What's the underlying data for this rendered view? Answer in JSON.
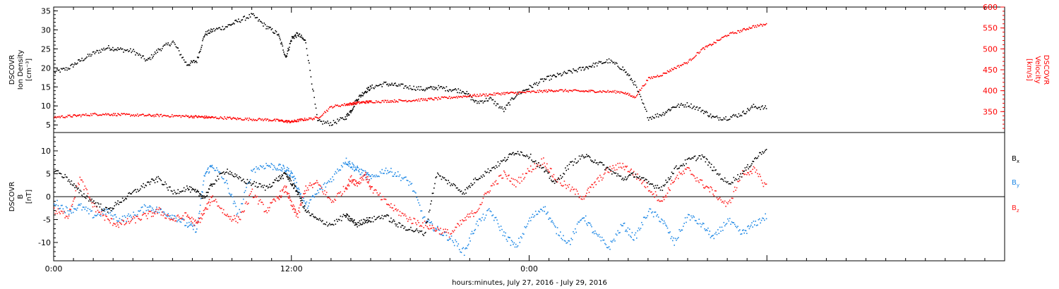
{
  "chart_data": [
    {
      "type": "scatter",
      "ylabel_left": [
        "DSCOVR",
        "Ion Density",
        "[cm⁻³]"
      ],
      "ylabel_right": [
        "DSCOVR",
        "Velocity",
        "[km/s]"
      ],
      "ylim_left": [
        3,
        36
      ],
      "ylim_right": [
        300,
        600
      ],
      "yticks_left": [
        "5",
        "10",
        "15",
        "20",
        "25",
        "30",
        "35"
      ],
      "yticks_right": [
        "350",
        "400",
        "450",
        "500",
        "550",
        "600"
      ],
      "colors": {
        "density": "#000000",
        "velocity": "#ff0000"
      },
      "series": [
        {
          "axis": "left",
          "color": "#000000",
          "x": [
            0.0,
            0.7,
            1.3,
            2.0,
            2.7,
            3.3,
            4.0,
            4.7,
            5.3,
            6.0,
            6.7,
            7.2,
            7.6,
            8.0,
            8.7,
            9.3,
            10.0,
            10.7,
            11.3,
            11.7,
            12.0,
            12.3,
            12.7,
            13.3,
            14.0,
            14.7,
            15.0,
            15.3,
            15.7,
            16.0,
            16.7,
            17.3,
            18.0,
            18.7,
            19.3,
            20.0,
            20.7,
            21.3,
            22.0,
            22.7,
            23.3,
            24.0,
            24.7,
            25.3,
            26.0,
            26.7,
            27.3,
            28.0,
            28.7,
            29.3,
            30.0,
            30.7,
            31.3,
            32.0,
            32.7,
            33.3,
            34.0,
            34.7,
            35.3,
            36.0
          ],
          "y": [
            19,
            20,
            22,
            24,
            25.5,
            25,
            24.5,
            22,
            25,
            27,
            21,
            22,
            29,
            30,
            31,
            32.5,
            34,
            31,
            29,
            23,
            28,
            29,
            27,
            6,
            5.5,
            7,
            9,
            12,
            14,
            15,
            16,
            15.5,
            15,
            14.5,
            15,
            14.5,
            14,
            11,
            12,
            9,
            13,
            15,
            17,
            18,
            19,
            20,
            21,
            22,
            20,
            16,
            7,
            8,
            10,
            10.5,
            9,
            7,
            7,
            8,
            10,
            9.5
          ]
        },
        {
          "axis": "right",
          "color": "#ff0000",
          "x": [
            0.0,
            0.7,
            1.3,
            2.0,
            2.7,
            3.3,
            4.0,
            4.7,
            5.3,
            6.0,
            6.7,
            7.2,
            7.6,
            8.0,
            8.7,
            9.3,
            10.0,
            10.7,
            11.3,
            11.7,
            12.0,
            12.3,
            12.7,
            13.3,
            14.0,
            14.7,
            15.0,
            15.3,
            15.7,
            16.0,
            16.7,
            17.3,
            18.0,
            18.7,
            19.3,
            20.0,
            20.7,
            21.3,
            22.0,
            22.7,
            23.3,
            24.0,
            24.7,
            25.3,
            26.0,
            26.7,
            27.3,
            28.0,
            28.7,
            29.3,
            30.0,
            30.7,
            31.3,
            32.0,
            32.7,
            33.3,
            34.0,
            34.7,
            35.3,
            36.0
          ],
          "y": [
            338,
            340,
            342,
            345,
            345,
            344,
            343,
            342,
            342,
            341,
            340,
            339,
            338,
            337,
            336,
            334,
            333,
            332,
            330,
            328,
            327,
            330,
            333,
            336,
            363,
            368,
            370,
            372,
            374,
            375,
            376,
            377,
            378,
            380,
            382,
            385,
            388,
            390,
            392,
            395,
            396,
            398,
            400,
            402,
            401,
            400,
            400,
            399,
            398,
            385,
            430,
            440,
            455,
            470,
            500,
            515,
            535,
            545,
            555,
            560
          ]
        }
      ]
    },
    {
      "type": "scatter",
      "ylabel": [
        "DSCOVR",
        "B",
        "[nT]"
      ],
      "ylim": [
        -14,
        14
      ],
      "yticks": [
        "10",
        "5",
        "0",
        "-5",
        "-10"
      ],
      "legend": {
        "Bx": "B",
        "Bx_sub": "x",
        "By": "B",
        "By_sub": "y",
        "Bz": "B",
        "Bz_sub": "z"
      },
      "colors": {
        "Bx": "#000000",
        "By": "#1e88e5",
        "Bz": "#ff2020"
      },
      "series": [
        {
          "color": "#000000",
          "x": [
            0.0,
            0.7,
            1.3,
            2.0,
            2.7,
            3.3,
            4.0,
            4.7,
            5.3,
            6.0,
            6.7,
            7.2,
            7.6,
            8.0,
            8.7,
            9.3,
            10.0,
            10.7,
            11.3,
            11.7,
            12.0,
            12.3,
            12.7,
            13.3,
            14.0,
            14.7,
            15.0,
            15.3,
            15.7,
            16.0,
            16.7,
            17.3,
            18.0,
            18.7,
            19.3,
            20.0,
            20.7,
            21.3,
            22.0,
            22.7,
            23.3,
            24.0,
            24.7,
            25.3,
            26.0,
            26.7,
            27.3,
            28.0,
            28.7,
            29.3,
            30.0,
            30.7,
            31.3,
            32.0,
            32.7,
            33.3,
            34.0,
            34.7,
            35.3,
            36.0
          ],
          "y": [
            6,
            4,
            1,
            -1,
            -3,
            -1,
            1,
            3,
            4,
            1,
            2,
            1,
            0,
            3,
            6,
            4,
            3,
            2,
            4,
            5,
            3,
            1,
            -3,
            -5,
            -6,
            -4,
            -5,
            -6,
            -5,
            -5,
            -4,
            -6,
            -7,
            -8,
            5,
            3,
            1,
            4,
            6,
            8,
            10,
            9,
            6,
            3,
            7,
            9,
            8,
            6,
            4,
            5,
            3,
            2,
            6,
            8,
            9,
            6,
            3,
            5,
            8,
            11
          ]
        },
        {
          "color": "#1e88e5",
          "x": [
            0.0,
            0.7,
            1.3,
            2.0,
            2.7,
            3.3,
            4.0,
            4.7,
            5.3,
            6.0,
            6.7,
            7.2,
            7.6,
            8.0,
            8.7,
            9.3,
            10.0,
            10.7,
            11.3,
            11.7,
            12.0,
            12.3,
            12.7,
            13.3,
            14.0,
            14.7,
            15.0,
            15.3,
            15.7,
            16.0,
            16.7,
            17.3,
            18.0,
            18.7,
            19.3,
            20.0,
            20.7,
            21.3,
            22.0,
            22.7,
            23.3,
            24.0,
            24.7,
            25.3,
            26.0,
            26.7,
            27.3,
            28.0,
            28.7,
            29.3,
            30.0,
            30.7,
            31.3,
            32.0,
            32.7,
            33.3,
            34.0,
            34.7,
            35.3,
            36.0
          ],
          "y": [
            -1,
            -3,
            -2,
            -4,
            -3,
            -5,
            -4,
            -2,
            -3,
            -4,
            -6,
            -7,
            5,
            7,
            3,
            -4,
            6,
            7,
            6.5,
            6,
            5,
            2,
            -2,
            1,
            4,
            8,
            7,
            6,
            5,
            4,
            6,
            5,
            3,
            -5,
            -7,
            -9,
            -12,
            -6,
            -3,
            -8,
            -11,
            -5,
            -2,
            -7,
            -10,
            -4,
            -8,
            -11,
            -6,
            -9,
            -3,
            -5,
            -10,
            -4,
            -6,
            -9,
            -5,
            -8,
            -6,
            -4
          ]
        },
        {
          "color": "#ff2020",
          "x": [
            0.0,
            0.7,
            1.3,
            2.0,
            2.7,
            3.3,
            4.0,
            4.7,
            5.3,
            6.0,
            6.7,
            7.2,
            7.6,
            8.0,
            8.7,
            9.3,
            10.0,
            10.7,
            11.3,
            11.7,
            12.0,
            12.3,
            12.7,
            13.3,
            14.0,
            14.7,
            15.0,
            15.3,
            15.7,
            16.0,
            16.7,
            17.3,
            18.0,
            18.7,
            19.3,
            20.0,
            20.7,
            21.3,
            22.0,
            22.7,
            23.3,
            24.0,
            24.7,
            25.3,
            26.0,
            26.7,
            27.3,
            28.0,
            28.7,
            29.3,
            30.0,
            30.7,
            31.3,
            32.0,
            32.7,
            33.3,
            34.0,
            34.7,
            35.3,
            36.0
          ],
          "y": [
            -3,
            -4,
            4,
            -2,
            -5,
            -6,
            -5,
            -4,
            -3,
            -5,
            -4,
            -6,
            -3,
            0,
            -4,
            -5,
            1,
            -3,
            0,
            2,
            -2,
            -4,
            2,
            3,
            -1,
            2,
            4,
            3,
            5,
            2,
            -1,
            -3,
            -5,
            -6,
            -7,
            -8,
            -5,
            -3,
            2,
            5,
            3,
            6,
            8,
            4,
            2,
            0,
            3,
            6,
            7,
            5,
            2,
            -1,
            4,
            6,
            3,
            1,
            -2,
            5,
            6,
            2
          ]
        }
      ]
    },
    {
      "type": "axis",
      "xlabel": "hours:minutes, July 27, 2016 - July 29, 2016",
      "xlim": [
        0,
        48
      ],
      "xticks": [
        {
          "pos": 0,
          "label": "0:00"
        },
        {
          "pos": 12,
          "label": "12:00"
        },
        {
          "pos": 24,
          "label": "0:00"
        }
      ]
    }
  ]
}
